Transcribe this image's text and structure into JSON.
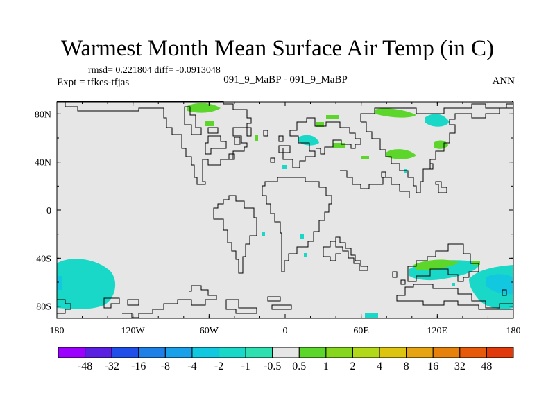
{
  "title": "Warmest Month Mean Surface Air Temp (in C)",
  "stats_text": "rmsd= 0.221804  diff= -0.0913048",
  "center_label": "091_9_MaBP - 091_9_MaBP",
  "left_label": "Expt = tfkes-tfjas",
  "right_label": "ANN",
  "map": {
    "x_ticks": [
      "180",
      "120W",
      "60W",
      "0",
      "60E",
      "120E",
      "180"
    ],
    "y_ticks": [
      "80N",
      "40N",
      "0",
      "40S",
      "80S"
    ],
    "background_color": "#e6e6e6"
  },
  "colorbar": {
    "colors": [
      "#9b00ff",
      "#5a1fe0",
      "#1f4fe8",
      "#1e7fe6",
      "#1aa0e8",
      "#12c8e0",
      "#1ad8c8",
      "#2ee0b0",
      "#e6e6e6",
      "#5cd62a",
      "#86d61e",
      "#b2d81a",
      "#dcc410",
      "#e6a412",
      "#e6820c",
      "#e65a0a",
      "#e03a0c"
    ],
    "labels": [
      "-48",
      "-32",
      "-16",
      "-8",
      "-4",
      "-2",
      "-1",
      "-0.5",
      "0.5",
      "1",
      "2",
      "4",
      "8",
      "16",
      "32",
      "48"
    ]
  }
}
